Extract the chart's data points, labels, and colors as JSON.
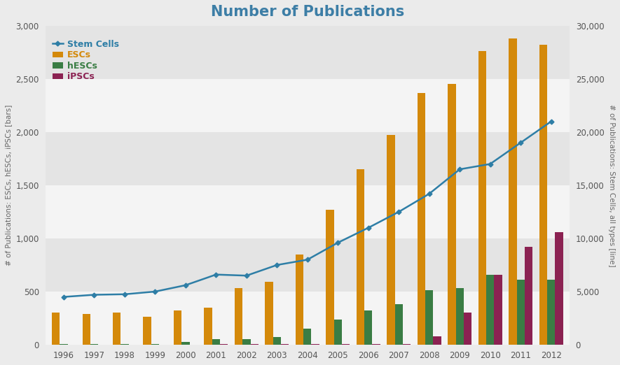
{
  "title": "Number of Publications",
  "years": [
    1996,
    1997,
    1998,
    1999,
    2000,
    2001,
    2002,
    2003,
    2004,
    2005,
    2006,
    2007,
    2008,
    2009,
    2010,
    2011,
    2012
  ],
  "stem_cells_line": [
    4500,
    4700,
    4750,
    5000,
    5600,
    6600,
    6500,
    7500,
    8000,
    9600,
    11000,
    12500,
    14200,
    16500,
    17000,
    19000,
    21000
  ],
  "ESCs": [
    300,
    290,
    300,
    260,
    320,
    350,
    530,
    590,
    850,
    1270,
    1650,
    1970,
    2370,
    2450,
    2760,
    2880,
    2820
  ],
  "hESCs": [
    5,
    5,
    5,
    10,
    25,
    50,
    50,
    70,
    150,
    240,
    320,
    380,
    510,
    530,
    660,
    610,
    610
  ],
  "iPSCs": [
    2,
    2,
    2,
    2,
    2,
    5,
    5,
    5,
    10,
    10,
    10,
    10,
    80,
    300,
    660,
    920,
    1060
  ],
  "ESC_color": "#D4890A",
  "hESC_color": "#3A7D44",
  "iPSC_color": "#8B2252",
  "line_color": "#2E7EA6",
  "title_color": "#3D7EA6",
  "bg_outer": "#ebebeb",
  "bg_band_light": "#f4f4f4",
  "bg_band_dark": "#e4e4e4",
  "left_ylim": [
    0,
    3000
  ],
  "right_ylim": [
    0,
    30000
  ],
  "left_yticks": [
    0,
    500,
    1000,
    1500,
    2000,
    2500,
    3000
  ],
  "right_yticks": [
    0,
    5000,
    10000,
    15000,
    20000,
    25000,
    30000
  ],
  "legend_labels": [
    "Stem Cells",
    "ESCs",
    "hESCs",
    "iPSCs"
  ],
  "legend_colors": [
    "#2E7EA6",
    "#D4890A",
    "#3A7D44",
    "#8B2252"
  ],
  "left_ylabel": "# of Publications: ESCs, hESCs, iPSCs [bars]",
  "right_ylabel": "# of Publications: Stem Cells, all types [line]"
}
